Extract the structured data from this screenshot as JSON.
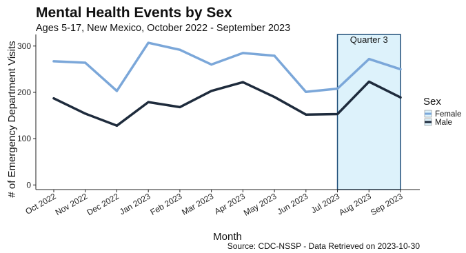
{
  "chart_data": {
    "type": "line",
    "title": "Mental Health Events by Sex",
    "subtitle": "Ages 5-17, New Mexico, October 2022 - September 2023",
    "xlabel": "Month",
    "ylabel": "# of Emergency Department Visits",
    "caption": "Source: CDC-NSSP - Data Retrieved on 2023-10-30",
    "categories": [
      "Oct 2022",
      "Nov 2022",
      "Dec 2022",
      "Jan 2023",
      "Feb 2023",
      "Mar 2023",
      "Apr 2023",
      "May 2023",
      "Jun 2023",
      "Jul 2023",
      "Aug 2023",
      "Sep 2023"
    ],
    "series": [
      {
        "name": "Female",
        "color": "#7BA7D9",
        "values": [
          267,
          264,
          203,
          307,
          292,
          260,
          285,
          279,
          201,
          208,
          272,
          250
        ]
      },
      {
        "name": "Male",
        "color": "#1E2B3C",
        "values": [
          187,
          154,
          128,
          179,
          168,
          203,
          222,
          190,
          152,
          153,
          223,
          189
        ]
      }
    ],
    "yticks": [
      0,
      100,
      200,
      300
    ],
    "ylim": [
      -10,
      322
    ],
    "grid": false,
    "legend": {
      "title": "Sex",
      "position": "right"
    },
    "highlight": {
      "label": "Quarter 3",
      "from": "Jul 2023",
      "to": "Sep 2023",
      "fill": "#DDF2FB",
      "stroke": "#1F4E79"
    }
  }
}
